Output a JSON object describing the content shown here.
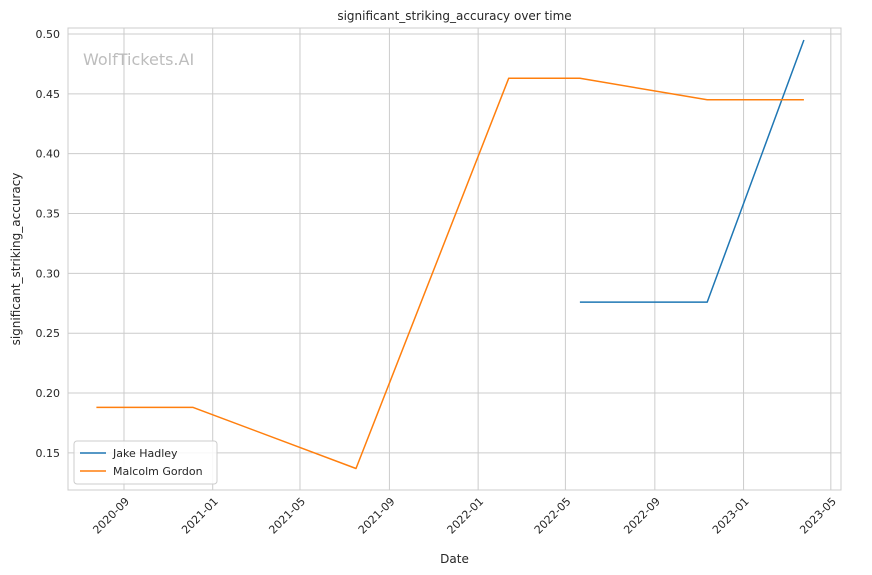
{
  "chart_data": {
    "type": "line",
    "title": "significant_striking_accuracy over time",
    "xlabel": "Date",
    "ylabel": "significant_striking_accuracy",
    "watermark": "WolfTickets.AI",
    "xlim": [
      "2020-06-16",
      "2023-05-15"
    ],
    "ylim": [
      0.119,
      0.505
    ],
    "x_ticks": [
      "2020-09-01",
      "2021-01-01",
      "2021-05-01",
      "2021-09-01",
      "2022-01-01",
      "2022-05-01",
      "2022-09-01",
      "2023-01-01",
      "2023-05-01"
    ],
    "x_tick_labels": [
      "2020-09",
      "2021-01",
      "2021-05",
      "2021-09",
      "2022-01",
      "2022-05",
      "2022-09",
      "2023-01",
      "2023-05"
    ],
    "y_ticks": [
      0.15,
      0.2,
      0.25,
      0.3,
      0.35,
      0.4,
      0.45,
      0.5
    ],
    "y_tick_labels": [
      "0.15",
      "0.20",
      "0.25",
      "0.30",
      "0.35",
      "0.40",
      "0.45",
      "0.50"
    ],
    "grid": true,
    "legend_position": "lower-left",
    "series": [
      {
        "name": "Jake Hadley",
        "color": "#1f77b4",
        "points": [
          {
            "x": "2022-05-21",
            "y": 0.276
          },
          {
            "x": "2022-11-12",
            "y": 0.276
          },
          {
            "x": "2023-03-25",
            "y": 0.495
          }
        ]
      },
      {
        "name": "Malcolm Gordon",
        "color": "#ff7f0e",
        "points": [
          {
            "x": "2020-07-25",
            "y": 0.188
          },
          {
            "x": "2020-12-05",
            "y": 0.188
          },
          {
            "x": "2021-07-17",
            "y": 0.137
          },
          {
            "x": "2022-02-12",
            "y": 0.463
          },
          {
            "x": "2022-05-21",
            "y": 0.463
          },
          {
            "x": "2022-11-12",
            "y": 0.445
          },
          {
            "x": "2023-03-25",
            "y": 0.445
          }
        ]
      }
    ]
  }
}
